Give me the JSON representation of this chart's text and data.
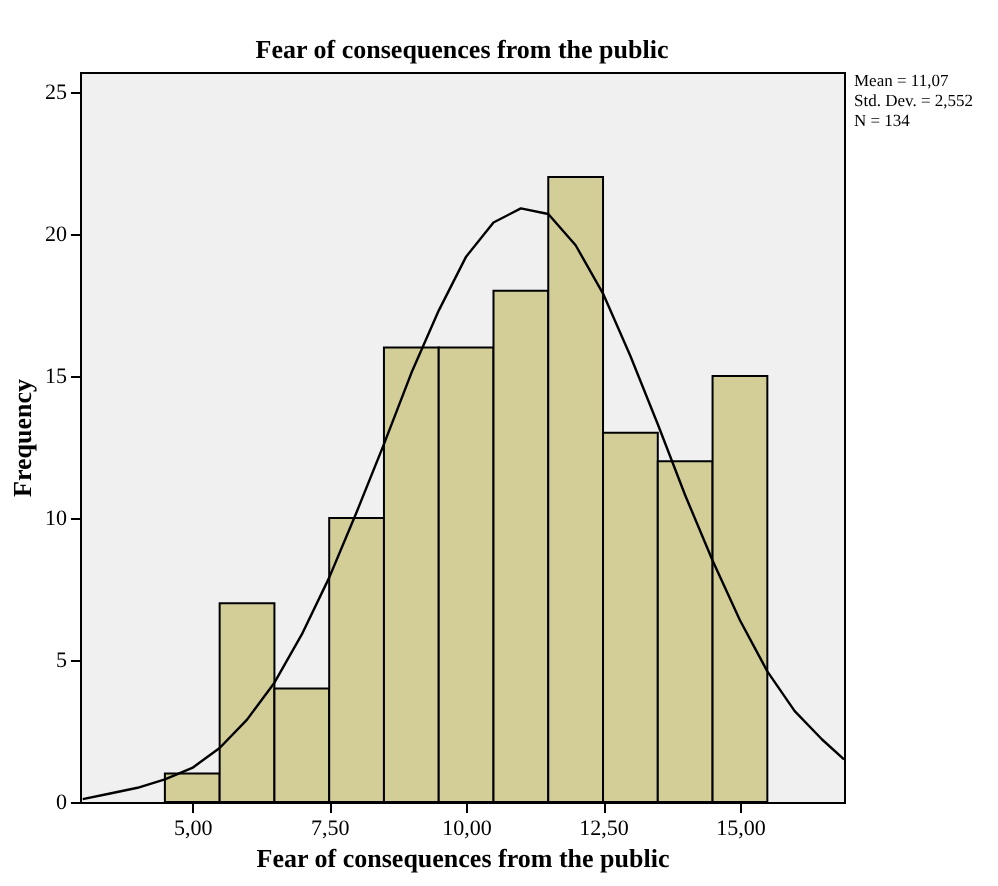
{
  "chart_data": {
    "type": "histogram",
    "title": "Fear of consequences from the public",
    "xlabel": "Fear of consequences from the public",
    "ylabel": "Frequency",
    "bins": [
      4.5,
      5.5,
      6.5,
      7.5,
      8.5,
      9.5,
      10.5,
      11.5,
      12.5,
      13.5,
      14.5,
      15.5
    ],
    "values": [
      1,
      7,
      4,
      10,
      16,
      16,
      18,
      22,
      13,
      12,
      15
    ],
    "color": "#d3ce97",
    "series": [
      {
        "type": "line",
        "color": "#000000",
        "x": [
          3,
          3.5,
          4,
          4.5,
          5,
          5.5,
          6,
          6.5,
          7,
          7.5,
          8,
          8.5,
          9,
          9.5,
          10,
          10.5,
          11,
          11.5,
          12,
          12.5,
          13,
          13.5,
          14,
          14.5,
          15,
          15.5,
          16,
          16.5,
          16.9
        ],
        "values": [
          0.1,
          0.3,
          0.5,
          0.8,
          1.2,
          1.9,
          2.9,
          4.2,
          5.9,
          7.9,
          10.2,
          12.6,
          15.1,
          17.3,
          19.2,
          20.4,
          20.9,
          20.7,
          19.6,
          17.9,
          15.7,
          13.3,
          10.8,
          8.5,
          6.4,
          4.6,
          3.2,
          2.2,
          1.5
        ]
      }
    ],
    "xlim": [
      2.95,
      16.9
    ],
    "ylim": [
      0,
      25.7
    ],
    "xticks": [
      {
        "value": 5,
        "label": "5,00"
      },
      {
        "value": 7.5,
        "label": "7,50"
      },
      {
        "value": 10,
        "label": "10,00"
      },
      {
        "value": 12.5,
        "label": "12,50"
      },
      {
        "value": 15,
        "label": "15,00"
      }
    ],
    "yticks": [
      0,
      5,
      10,
      15,
      20,
      25
    ],
    "annotations": [
      "Mean = 11,07",
      "Std. Dev. = 2,552",
      "N = 134"
    ],
    "grid": false
  }
}
